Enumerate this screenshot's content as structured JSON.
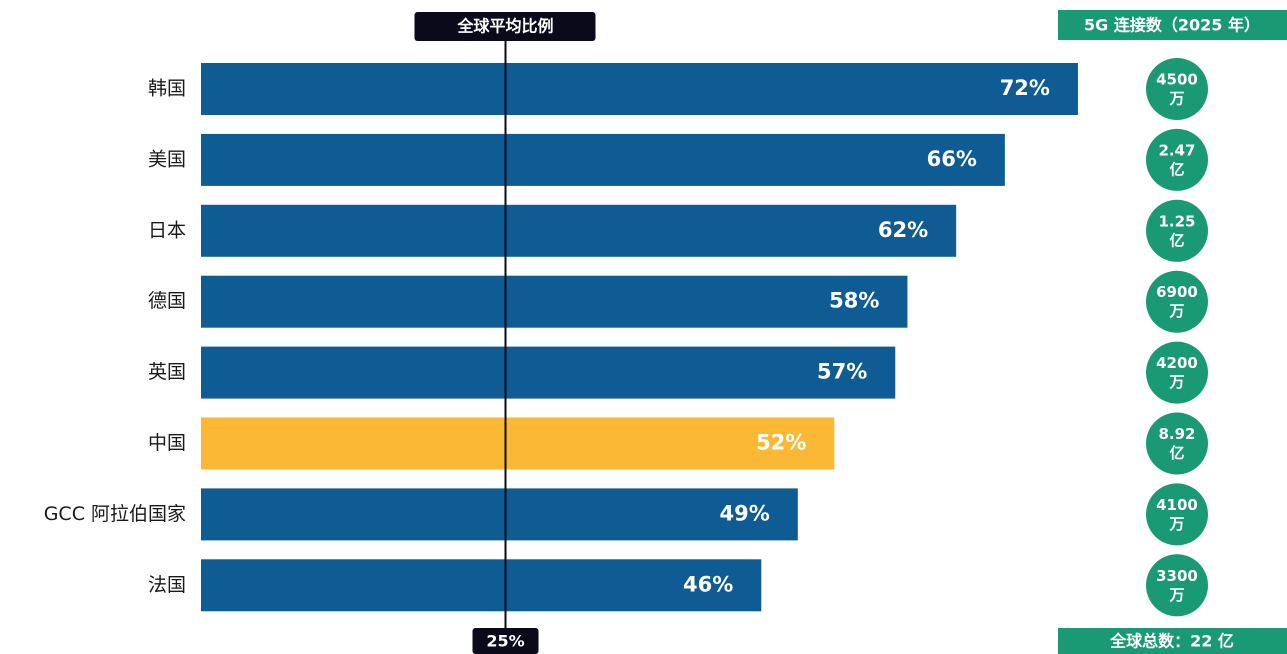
{
  "chart_data": {
    "type": "bar",
    "orientation": "horizontal",
    "categories": [
      "韩国",
      "美国",
      "日本",
      "德国",
      "英国",
      "中国",
      "GCC 阿拉伯国家",
      "法国"
    ],
    "values": [
      72,
      66,
      62,
      58,
      57,
      52,
      49,
      46
    ],
    "value_labels": [
      "72%",
      "66%",
      "62%",
      "58%",
      "57%",
      "52%",
      "49%",
      "46%"
    ],
    "colors": [
      "#0f5c94",
      "#0f5c94",
      "#0f5c94",
      "#0f5c94",
      "#0f5c94",
      "#fbb834",
      "#0f5c94",
      "#0f5c94"
    ],
    "reference_line": {
      "title": "全球平均比例",
      "value": 25,
      "label": "25%"
    },
    "connections_title": "5G 连接数（2025 年）",
    "connections": [
      [
        "4500",
        "万"
      ],
      [
        "2.47",
        "亿"
      ],
      [
        "1.25",
        "亿"
      ],
      [
        "6900",
        "万"
      ],
      [
        "4200",
        "万"
      ],
      [
        "8.92",
        "亿"
      ],
      [
        "4100",
        "万"
      ],
      [
        "3300",
        "万"
      ]
    ],
    "connections_color": "#1a9a74",
    "connections_total": "全球总数：22 亿"
  }
}
